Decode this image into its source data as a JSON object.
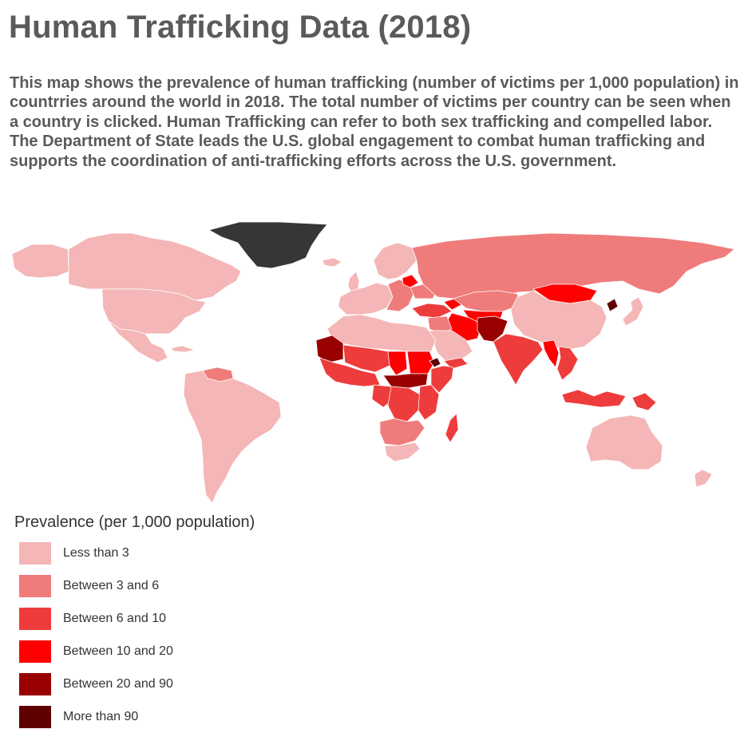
{
  "page": {
    "title": "Human Trafficking Data (2018)",
    "description": "This map shows the prevalence of human trafficking (number of victims per 1,000 population) in countrries around the world in 2018. The total number of victims per country can be seen when a country is clicked. Human Trafficking can refer to both sex trafficking and compelled labor. The Department of State leads the U.S. global engagement to combat human trafficking and supports the coordination of anti-trafficking efforts across the U.S. government."
  },
  "colors": {
    "background": "#ffffff",
    "no_data": "#363636",
    "classes": [
      "#f4b6b6",
      "#ef7b7b",
      "#ee3c3c",
      "#ff0000",
      "#990000",
      "#5e0000"
    ]
  },
  "legend": {
    "title": "Prevalence (per 1,000 population)",
    "items": [
      {
        "label": "Less than 3",
        "color": "#f4b6b6"
      },
      {
        "label": "Between 3 and 6",
        "color": "#ef7b7b"
      },
      {
        "label": "Between 6 and 10",
        "color": "#ee3c3c"
      },
      {
        "label": "Between 10 and 20",
        "color": "#ff0000"
      },
      {
        "label": "Between 20 and 90",
        "color": "#990000"
      },
      {
        "label": "More than 90",
        "color": "#5e0000"
      }
    ]
  },
  "map": {
    "regions": [
      {
        "name": "greenland",
        "class": "no-data"
      },
      {
        "name": "canada",
        "class": 0
      },
      {
        "name": "alaska",
        "class": 0
      },
      {
        "name": "usa",
        "class": 0
      },
      {
        "name": "mexico",
        "class": 0
      },
      {
        "name": "cuba",
        "class": 0
      },
      {
        "name": "venezuela",
        "class": 1
      },
      {
        "name": "south-america",
        "class": 0
      },
      {
        "name": "iceland",
        "class": 0
      },
      {
        "name": "uk",
        "class": 0
      },
      {
        "name": "scandinavia",
        "class": 0
      },
      {
        "name": "western-europe",
        "class": 0
      },
      {
        "name": "eastern-europe",
        "class": 1
      },
      {
        "name": "belarus",
        "class": 3
      },
      {
        "name": "ukraine",
        "class": 1
      },
      {
        "name": "russia",
        "class": 1
      },
      {
        "name": "turkey",
        "class": 2
      },
      {
        "name": "caucasus",
        "class": 3
      },
      {
        "name": "kazakhstan",
        "class": 1
      },
      {
        "name": "central-asia",
        "class": 3
      },
      {
        "name": "iran",
        "class": 3
      },
      {
        "name": "afghanistan-pakistan",
        "class": 4
      },
      {
        "name": "middle-east",
        "class": 1
      },
      {
        "name": "arabian-peninsula",
        "class": 0
      },
      {
        "name": "yemen",
        "class": 2
      },
      {
        "name": "india",
        "class": 2
      },
      {
        "name": "mongolia",
        "class": 3
      },
      {
        "name": "china",
        "class": 0
      },
      {
        "name": "north-korea",
        "class": 5
      },
      {
        "name": "japan",
        "class": 0
      },
      {
        "name": "myanmar",
        "class": 3
      },
      {
        "name": "southeast-asia",
        "class": 2
      },
      {
        "name": "indonesia",
        "class": 2
      },
      {
        "name": "papua-new-guinea",
        "class": 2
      },
      {
        "name": "australia",
        "class": 0
      },
      {
        "name": "new-zealand",
        "class": 0
      },
      {
        "name": "north-africa",
        "class": 0
      },
      {
        "name": "mauritania",
        "class": 4
      },
      {
        "name": "west-africa",
        "class": 2
      },
      {
        "name": "sahel",
        "class": 2
      },
      {
        "name": "chad",
        "class": 3
      },
      {
        "name": "sudan",
        "class": 3
      },
      {
        "name": "south-sudan-car",
        "class": 4
      },
      {
        "name": "eritrea",
        "class": 5
      },
      {
        "name": "horn-of-africa",
        "class": 2
      },
      {
        "name": "central-africa",
        "class": 2
      },
      {
        "name": "drc",
        "class": 2
      },
      {
        "name": "east-africa",
        "class": 2
      },
      {
        "name": "southern-africa",
        "class": 1
      },
      {
        "name": "south-africa",
        "class": 0
      },
      {
        "name": "madagascar",
        "class": 2
      }
    ]
  }
}
